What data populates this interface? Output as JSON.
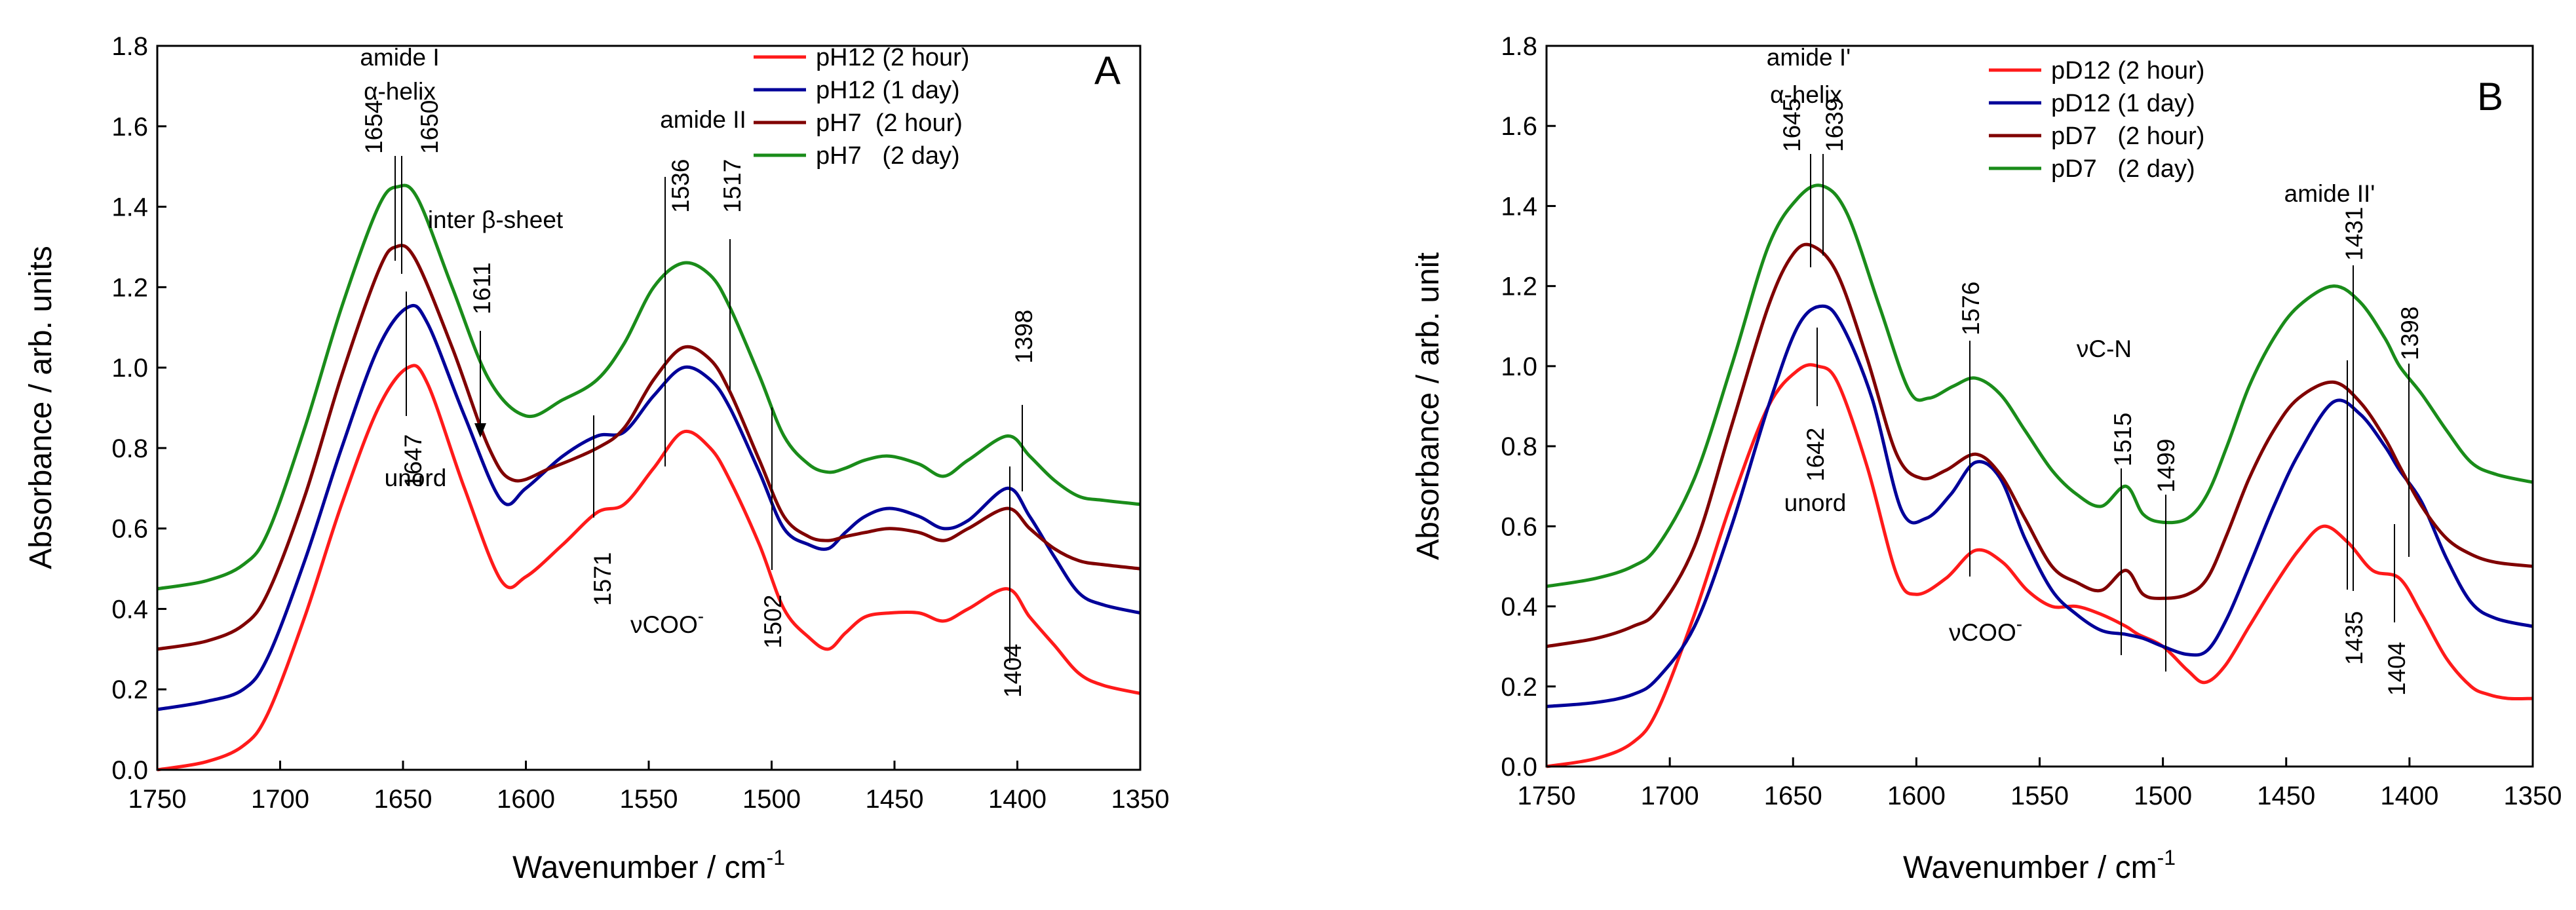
{
  "chart_data": [
    {
      "type": "line",
      "panel_label": "A",
      "xlabel": "Wavenumber / cm",
      "xlabel_sup": "-1",
      "ylabel": "Absorbance / arb. units",
      "xlim": [
        1750,
        1350
      ],
      "ylim": [
        0,
        1.8
      ],
      "x_ticks": [
        1750,
        1700,
        1650,
        1600,
        1550,
        1500,
        1450,
        1400,
        1350
      ],
      "y_ticks": [
        "0.0",
        "0.2",
        "0.4",
        "0.6",
        "0.8",
        "1.0",
        "1.2",
        "1.4",
        "1.6",
        "1.8"
      ],
      "legend_position": "top-right",
      "series": [
        {
          "name": "pH12 (2 hour)",
          "color": "#ff1a1a",
          "x": [
            1750,
            1730,
            1715,
            1705,
            1690,
            1675,
            1660,
            1648,
            1640,
            1625,
            1610,
            1600,
            1585,
            1571,
            1560,
            1548,
            1536,
            1525,
            1517,
            1505,
            1495,
            1485,
            1477,
            1470,
            1462,
            1452,
            1440,
            1430,
            1420,
            1404,
            1395,
            1385,
            1375,
            1365,
            1350
          ],
          "y": [
            0.0,
            0.02,
            0.06,
            0.14,
            0.38,
            0.66,
            0.9,
            1.0,
            0.96,
            0.7,
            0.47,
            0.48,
            0.56,
            0.64,
            0.66,
            0.75,
            0.84,
            0.8,
            0.72,
            0.56,
            0.4,
            0.33,
            0.3,
            0.34,
            0.38,
            0.39,
            0.39,
            0.37,
            0.4,
            0.45,
            0.38,
            0.31,
            0.24,
            0.21,
            0.19
          ]
        },
        {
          "name": "pH12 (1 day)",
          "color": "#000099",
          "x": [
            1750,
            1730,
            1715,
            1705,
            1690,
            1675,
            1660,
            1648,
            1640,
            1625,
            1610,
            1600,
            1585,
            1571,
            1560,
            1548,
            1536,
            1525,
            1517,
            1505,
            1495,
            1485,
            1477,
            1470,
            1462,
            1452,
            1440,
            1430,
            1420,
            1404,
            1395,
            1385,
            1375,
            1365,
            1350
          ],
          "y": [
            0.15,
            0.17,
            0.2,
            0.28,
            0.52,
            0.8,
            1.05,
            1.15,
            1.11,
            0.88,
            0.67,
            0.7,
            0.78,
            0.83,
            0.84,
            0.93,
            1.0,
            0.97,
            0.9,
            0.74,
            0.6,
            0.56,
            0.55,
            0.59,
            0.63,
            0.65,
            0.63,
            0.6,
            0.62,
            0.7,
            0.63,
            0.53,
            0.44,
            0.41,
            0.39
          ]
        },
        {
          "name": "pH7  (2 hour)",
          "color": "#800000",
          "x": [
            1750,
            1730,
            1715,
            1705,
            1690,
            1675,
            1660,
            1653,
            1645,
            1630,
            1615,
            1605,
            1590,
            1571,
            1560,
            1548,
            1536,
            1525,
            1517,
            1505,
            1495,
            1485,
            1477,
            1470,
            1462,
            1452,
            1440,
            1430,
            1420,
            1404,
            1395,
            1385,
            1375,
            1365,
            1350
          ],
          "y": [
            0.3,
            0.32,
            0.36,
            0.44,
            0.68,
            0.98,
            1.24,
            1.3,
            1.27,
            1.05,
            0.8,
            0.72,
            0.75,
            0.8,
            0.85,
            0.97,
            1.05,
            1.02,
            0.94,
            0.77,
            0.63,
            0.58,
            0.57,
            0.58,
            0.59,
            0.6,
            0.59,
            0.57,
            0.6,
            0.65,
            0.6,
            0.55,
            0.52,
            0.51,
            0.5
          ]
        },
        {
          "name": "pH7   (2 day)",
          "color": "#1a8c1a",
          "x": [
            1750,
            1730,
            1715,
            1705,
            1690,
            1675,
            1660,
            1652,
            1644,
            1630,
            1615,
            1600,
            1585,
            1571,
            1560,
            1548,
            1536,
            1525,
            1517,
            1505,
            1495,
            1485,
            1477,
            1470,
            1462,
            1452,
            1440,
            1430,
            1420,
            1404,
            1395,
            1385,
            1375,
            1365,
            1350
          ],
          "y": [
            0.45,
            0.47,
            0.51,
            0.59,
            0.85,
            1.15,
            1.4,
            1.45,
            1.42,
            1.2,
            0.97,
            0.88,
            0.92,
            0.97,
            1.06,
            1.2,
            1.26,
            1.23,
            1.15,
            0.98,
            0.83,
            0.76,
            0.74,
            0.75,
            0.77,
            0.78,
            0.76,
            0.73,
            0.77,
            0.83,
            0.78,
            0.72,
            0.68,
            0.67,
            0.66
          ]
        }
      ],
      "annotations": {
        "amide_label": "amide I",
        "helix_label": "α-helix",
        "inter_label": "inter β-sheet",
        "amide2_label": "amide II",
        "unord_label": "unord",
        "vcoo_label": "νCOO",
        "vcoo_sup": "-",
        "peaks": [
          "1654",
          "1650",
          "1647",
          "1611",
          "1536",
          "1517",
          "1571",
          "1502",
          "1398",
          "1404"
        ]
      }
    },
    {
      "type": "line",
      "panel_label": "B",
      "xlabel": "Wavenumber / cm",
      "xlabel_sup": "-1",
      "ylabel": "Absorbance / arb. unit",
      "xlim": [
        1750,
        1350
      ],
      "ylim": [
        0,
        1.8
      ],
      "x_ticks": [
        1750,
        1700,
        1650,
        1600,
        1550,
        1500,
        1450,
        1400,
        1350
      ],
      "y_ticks": [
        "0.0",
        "0.2",
        "0.4",
        "0.6",
        "0.8",
        "1.0",
        "1.2",
        "1.4",
        "1.6",
        "1.8"
      ],
      "legend_position": "top-center",
      "series": [
        {
          "name": "pD12 (2 hour)",
          "color": "#ff1a1a",
          "x": [
            1750,
            1730,
            1715,
            1705,
            1690,
            1675,
            1660,
            1648,
            1640,
            1632,
            1620,
            1608,
            1600,
            1588,
            1576,
            1565,
            1555,
            1545,
            1535,
            1525,
            1515,
            1510,
            1500,
            1490,
            1483,
            1475,
            1465,
            1455,
            1445,
            1435,
            1425,
            1415,
            1404,
            1395,
            1385,
            1375,
            1368,
            1360,
            1350
          ],
          "y": [
            0.0,
            0.02,
            0.06,
            0.14,
            0.38,
            0.66,
            0.9,
            0.99,
            1.0,
            0.96,
            0.75,
            0.48,
            0.43,
            0.47,
            0.54,
            0.51,
            0.44,
            0.4,
            0.4,
            0.38,
            0.35,
            0.33,
            0.3,
            0.24,
            0.21,
            0.25,
            0.35,
            0.45,
            0.54,
            0.6,
            0.56,
            0.49,
            0.47,
            0.38,
            0.27,
            0.2,
            0.18,
            0.17,
            0.17
          ]
        },
        {
          "name": "pD12 (1 day)",
          "color": "#000099",
          "x": [
            1750,
            1730,
            1715,
            1705,
            1690,
            1675,
            1660,
            1648,
            1638,
            1630,
            1618,
            1606,
            1596,
            1586,
            1576,
            1566,
            1556,
            1545,
            1535,
            1525,
            1515,
            1508,
            1500,
            1490,
            1482,
            1474,
            1465,
            1455,
            1445,
            1431,
            1420,
            1410,
            1404,
            1395,
            1385,
            1375,
            1365,
            1350
          ],
          "y": [
            0.15,
            0.16,
            0.18,
            0.22,
            0.35,
            0.6,
            0.9,
            1.1,
            1.15,
            1.1,
            0.92,
            0.64,
            0.62,
            0.68,
            0.76,
            0.72,
            0.57,
            0.44,
            0.38,
            0.34,
            0.33,
            0.32,
            0.3,
            0.28,
            0.29,
            0.37,
            0.5,
            0.65,
            0.78,
            0.91,
            0.88,
            0.8,
            0.74,
            0.66,
            0.52,
            0.41,
            0.37,
            0.35
          ]
        },
        {
          "name": "pD7   (2 hour)",
          "color": "#800000",
          "x": [
            1750,
            1730,
            1715,
            1705,
            1690,
            1675,
            1660,
            1650,
            1642,
            1632,
            1620,
            1608,
            1598,
            1588,
            1576,
            1566,
            1556,
            1545,
            1535,
            1525,
            1515,
            1508,
            1500,
            1490,
            1482,
            1474,
            1465,
            1455,
            1445,
            1431,
            1420,
            1410,
            1404,
            1395,
            1385,
            1375,
            1365,
            1350
          ],
          "y": [
            0.3,
            0.32,
            0.35,
            0.39,
            0.55,
            0.85,
            1.15,
            1.28,
            1.3,
            1.23,
            1.02,
            0.78,
            0.72,
            0.74,
            0.78,
            0.73,
            0.62,
            0.5,
            0.46,
            0.44,
            0.49,
            0.43,
            0.42,
            0.43,
            0.47,
            0.58,
            0.72,
            0.84,
            0.92,
            0.96,
            0.91,
            0.82,
            0.75,
            0.65,
            0.57,
            0.53,
            0.51,
            0.5
          ]
        },
        {
          "name": "pD7   (2 day)",
          "color": "#1a8c1a",
          "x": [
            1750,
            1730,
            1715,
            1705,
            1690,
            1675,
            1660,
            1648,
            1638,
            1628,
            1615,
            1603,
            1595,
            1585,
            1576,
            1566,
            1556,
            1545,
            1535,
            1525,
            1515,
            1508,
            1500,
            1490,
            1482,
            1474,
            1465,
            1455,
            1445,
            1431,
            1420,
            1410,
            1404,
            1395,
            1385,
            1375,
            1365,
            1350
          ],
          "y": [
            0.45,
            0.47,
            0.5,
            0.55,
            0.72,
            1.0,
            1.3,
            1.42,
            1.45,
            1.38,
            1.15,
            0.94,
            0.92,
            0.95,
            0.97,
            0.93,
            0.84,
            0.74,
            0.68,
            0.65,
            0.7,
            0.63,
            0.61,
            0.62,
            0.68,
            0.8,
            0.95,
            1.07,
            1.15,
            1.2,
            1.16,
            1.07,
            1.0,
            0.93,
            0.84,
            0.76,
            0.73,
            0.71
          ]
        }
      ],
      "annotations": {
        "amide_label": "amide I'",
        "helix_label": "α-helix",
        "amide2_label": "amide II'",
        "vcn_label": "νC-N",
        "unord_label": "unord",
        "vcoo_label": "νCOO",
        "vcoo_sup": "-",
        "peaks": [
          "1645",
          "1639",
          "1642",
          "1576",
          "1515",
          "1499",
          "1431",
          "1398",
          "1435",
          "1404"
        ]
      }
    }
  ]
}
